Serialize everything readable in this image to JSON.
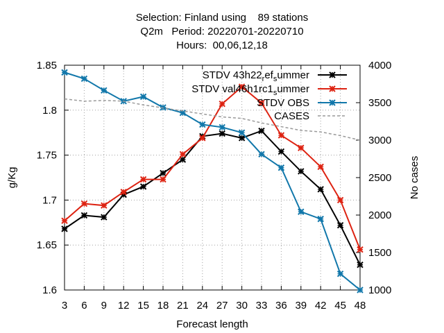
{
  "chart_data": {
    "type": "line",
    "title_lines": [
      "Selection: Finland using    89 stations",
      "Q2m   Period: 20220701-20220710",
      "Hours:  00,06,12,18"
    ],
    "xlabel": "Forecast length",
    "ylabel": "g/Kg",
    "y2label": "No cases",
    "x": [
      3,
      6,
      9,
      12,
      15,
      18,
      21,
      24,
      27,
      30,
      33,
      36,
      39,
      42,
      45,
      48
    ],
    "xlim": [
      3,
      48
    ],
    "ylim": [
      1.6,
      1.85
    ],
    "y_ticks": [
      "1.6",
      "1.65",
      "1.7",
      "1.75",
      "1.8",
      "1.85"
    ],
    "y2lim": [
      1000,
      4000
    ],
    "y2_ticks": [
      "1000",
      "1500",
      "2000",
      "2500",
      "3000",
      "3500",
      "4000"
    ],
    "grid": true,
    "legend_position": "top-right",
    "series": [
      {
        "name": "STDV 43h22_ref_summer",
        "legend_text": {
          "a": "STDV 43h22",
          "b": "r",
          "c": "ef",
          "d": "s",
          "e": "ummer"
        },
        "color": "#000000",
        "axis": "y",
        "marker": "x",
        "values": [
          1.668,
          1.683,
          1.681,
          1.706,
          1.715,
          1.73,
          1.745,
          1.771,
          1.774,
          1.769,
          1.777,
          1.754,
          1.732,
          1.712,
          1.672,
          1.628
        ]
      },
      {
        "name": "STDV val46h1rc1_summer",
        "legend_text": {
          "a": "STDV val46h1rc1",
          "b": "s",
          "c": "ummer"
        },
        "color": "#dd2211",
        "axis": "y",
        "marker": "x",
        "values": [
          1.677,
          1.696,
          1.694,
          1.709,
          1.723,
          1.723,
          1.751,
          1.769,
          1.807,
          1.826,
          1.808,
          1.772,
          1.758,
          1.737,
          1.7,
          1.645
        ]
      },
      {
        "name": "STDV OBS",
        "color": "#1177aa",
        "axis": "y",
        "marker": "x",
        "values": [
          1.842,
          1.835,
          1.822,
          1.81,
          1.815,
          1.803,
          1.797,
          1.784,
          1.781,
          1.775,
          1.751,
          1.736,
          1.687,
          1.679,
          1.618,
          1.6
        ]
      },
      {
        "name": "CASES",
        "color": "#999999",
        "axis": "y2",
        "dashed": true,
        "values": [
          3550,
          3520,
          3530,
          3520,
          3470,
          3430,
          3390,
          3350,
          3310,
          3290,
          3230,
          3180,
          3130,
          3110,
          3060,
          3000
        ]
      }
    ]
  }
}
